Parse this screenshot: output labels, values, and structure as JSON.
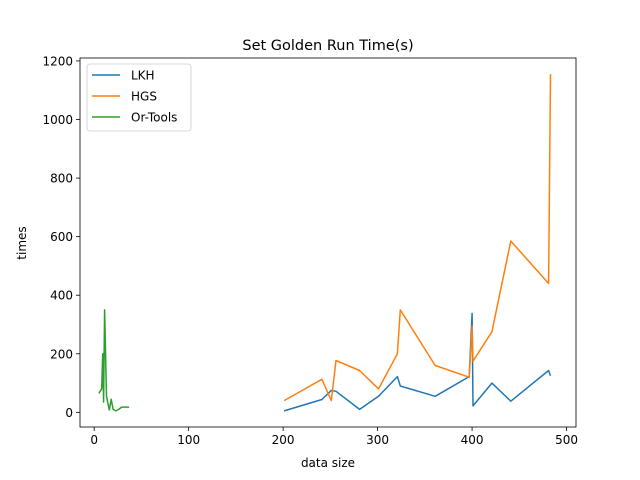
{
  "chart_data": {
    "type": "line",
    "title": "Set Golden Run Time(s)",
    "xlabel": "data size",
    "ylabel": "times",
    "xlim": [
      -15,
      510
    ],
    "ylim": [
      -50,
      1210
    ],
    "xticks": [
      0,
      100,
      200,
      300,
      400,
      500
    ],
    "yticks": [
      0,
      200,
      400,
      600,
      800,
      1000,
      1200
    ],
    "grid": false,
    "legend_position": "top-left",
    "series": [
      {
        "name": "LKH",
        "color": "#1f77b4",
        "x": [
          201,
          241,
          251,
          256,
          281,
          301,
          321,
          324,
          361,
          397,
          400,
          401,
          421,
          441,
          481,
          483
        ],
        "y": [
          5,
          44,
          75,
          72,
          10,
          55,
          122,
          90,
          55,
          122,
          338,
          22,
          100,
          38,
          143,
          125
        ]
      },
      {
        "name": "HGS",
        "color": "#ff7f0e",
        "x": [
          201,
          241,
          251,
          256,
          281,
          301,
          321,
          324,
          361,
          397,
          400,
          401,
          421,
          441,
          481,
          483
        ],
        "y": [
          40,
          113,
          40,
          177,
          143,
          80,
          200,
          350,
          160,
          120,
          295,
          175,
          275,
          585,
          440,
          1155
        ]
      },
      {
        "name": "Or-Tools",
        "color": "#2ca02c",
        "x": [
          5,
          8,
          9,
          10,
          11,
          13,
          16,
          18,
          20,
          23,
          26,
          29,
          32,
          37
        ],
        "y": [
          65,
          80,
          200,
          35,
          350,
          55,
          8,
          45,
          10,
          5,
          10,
          18,
          18,
          18
        ]
      }
    ]
  }
}
